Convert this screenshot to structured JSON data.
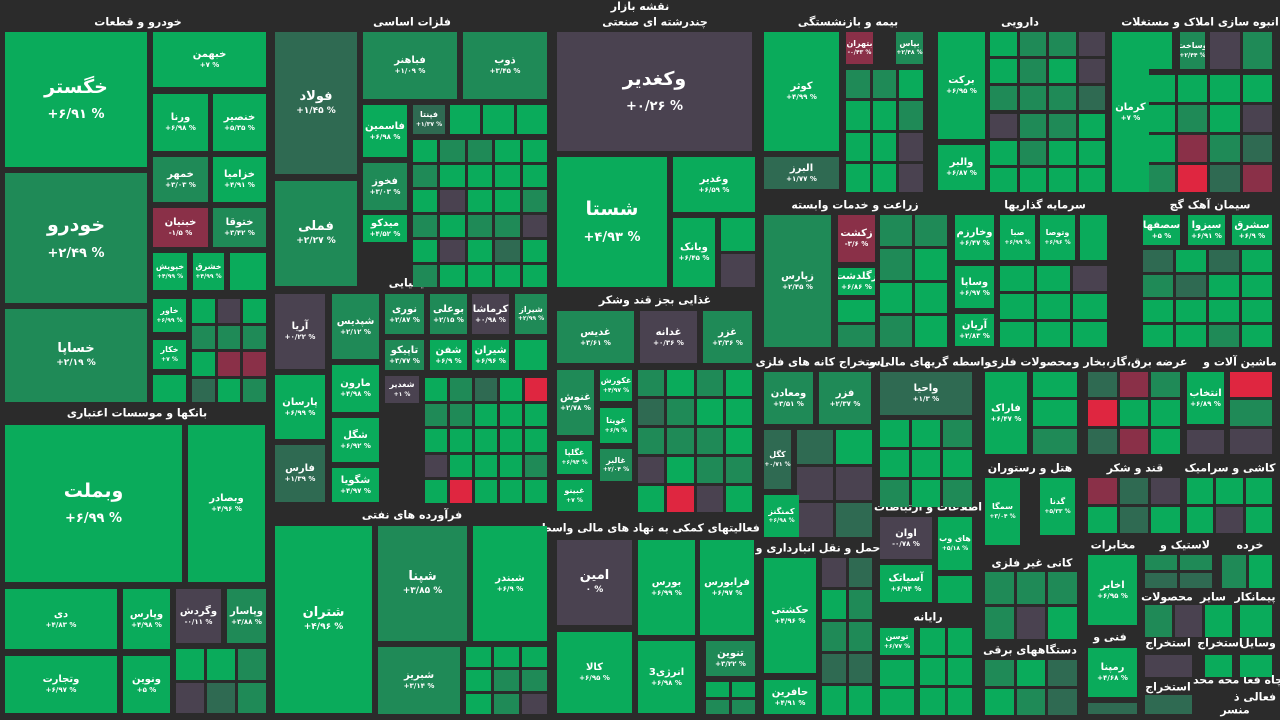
{
  "title": "نقشه بازار",
  "colors": {
    "strong_up": "#0aab5b",
    "up": "#1f8a57",
    "slight_up": "#2f6a52",
    "flat": "#4a4250",
    "down": "#8a3048",
    "strong_down": "#df2640"
  },
  "sectors": [
    "خودرو و قطعات",
    "فلزات اساسی",
    "چندرشته ای صنعتی",
    "بیمه و بازنشستگی",
    "دارویی",
    "انبوه سازی املاک و مستغلات",
    "شیمیایی",
    "بانکها و موسسات اعتباری",
    "فرآورده های نفتی",
    "غذایی بجز قند وشکر",
    "فعالیتهای کمکی به نهاد های مالی واسط",
    "زراعت و خدمات وابسته",
    "سرمایه گذاریها",
    "سیمان آهک گچ",
    "استخراج کانه های فلزی",
    "واسطه گریهای مالی و",
    "محصولات فلزی",
    "عرضه برق،گاز،بخار و",
    "ماشین آلات و",
    "هتل و رستوران",
    "قند و شکر",
    "کاشی و سرامیک",
    "اطلاعات و ارتباطات",
    "حمل و نقل انبارداری و",
    "مخابرات",
    "لاستیک و",
    "خرده",
    "کانی غیر فلزی",
    "محصولات",
    "سایر",
    "پیمانکار",
    "رایانه",
    "فنی و",
    "دستگاههای برقی",
    "استخراج",
    "استخراج",
    "وسایل",
    "استخراج",
    "چاه فعا محه محد",
    "فعالی ذ",
    "منسر"
  ],
  "tiles": [
    {
      "symbol": "خگستر",
      "change": "+۶/۹۱ %",
      "tone": "b"
    },
    {
      "symbol": "خودرو",
      "change": "+۲/۴۹ %",
      "tone": "m"
    },
    {
      "symbol": "خساپا",
      "change": "+۲/۱۹ %",
      "tone": "m"
    },
    {
      "symbol": "خبهمن",
      "change": "+۷ %",
      "tone": "b"
    },
    {
      "symbol": "ورنا",
      "change": "+۶/۹۸ %",
      "tone": "b"
    },
    {
      "symbol": "خنصیر",
      "change": "+۵/۳۵ %",
      "tone": "b"
    },
    {
      "symbol": "خمهر",
      "change": "+۳/۰۳ %",
      "tone": "m"
    },
    {
      "symbol": "خزامیا",
      "change": "+۴/۹۱ %",
      "tone": "b"
    },
    {
      "symbol": "خبنیان",
      "change": "-۱/۵ %",
      "tone": "r"
    },
    {
      "symbol": "ختوقا",
      "change": "+۳/۴۲ %",
      "tone": "m"
    },
    {
      "symbol": "خپویش",
      "change": "+۴/۹۹ %",
      "tone": "b"
    },
    {
      "symbol": "خشرق",
      "change": "+۴/۹۹ %",
      "tone": "b"
    },
    {
      "symbol": "خاور",
      "change": "+۶/۹۹ %",
      "tone": "b"
    },
    {
      "symbol": "خکار",
      "change": "+۷ %",
      "tone": "b"
    },
    {
      "symbol": "فولاد",
      "change": "+۱/۴۵ %",
      "tone": "d"
    },
    {
      "symbol": "فملی",
      "change": "+۲/۲۷ %",
      "tone": "m"
    },
    {
      "symbol": "فباهنر",
      "change": "+۱/۰۹ %",
      "tone": "m"
    },
    {
      "symbol": "ذوب",
      "change": "+۳/۴۵ %",
      "tone": "m"
    },
    {
      "symbol": "فاسمین",
      "change": "+۶/۹۸ %",
      "tone": "b"
    },
    {
      "symbol": "فپنتا",
      "change": "+۱/۳۷ %",
      "tone": "d"
    },
    {
      "symbol": "فخوز",
      "change": "+۳/۰۳ %",
      "tone": "m"
    },
    {
      "symbol": "میدکو",
      "change": "+۴/۵۲ %",
      "tone": "b"
    },
    {
      "symbol": "آریا",
      "change": "+۰/۲۲ %",
      "tone": "g"
    },
    {
      "symbol": "شپدیس",
      "change": "+۲/۱۲ %",
      "tone": "m"
    },
    {
      "symbol": "نوری",
      "change": "+۲/۸۷ %",
      "tone": "m"
    },
    {
      "symbol": "بوعلی",
      "change": "+۲/۱۵ %",
      "tone": "m"
    },
    {
      "symbol": "کرماشا",
      "change": "+۰/۹۸ %",
      "tone": "g"
    },
    {
      "symbol": "شیراز",
      "change": "+۲/۹۹ %",
      "tone": "m"
    },
    {
      "symbol": "تاپیکو",
      "change": "+۳/۷۷ %",
      "tone": "m"
    },
    {
      "symbol": "شفن",
      "change": "+۶/۹ %",
      "tone": "b"
    },
    {
      "symbol": "شیران",
      "change": "+۶/۹۶ %",
      "tone": "b"
    },
    {
      "symbol": "پارسان",
      "change": "+۶/۹۹ %",
      "tone": "b"
    },
    {
      "symbol": "مارون",
      "change": "+۴/۹۸ %",
      "tone": "b"
    },
    {
      "symbol": "شغدیر",
      "change": "+۱ %",
      "tone": "g"
    },
    {
      "symbol": "فارس",
      "change": "+۱/۳۹ %",
      "tone": "d"
    },
    {
      "symbol": "شگل",
      "change": "+۶/۹۲ %",
      "tone": "b"
    },
    {
      "symbol": "شگویا",
      "change": "+۴/۹۷ %",
      "tone": "b"
    },
    {
      "symbol": "شتران",
      "change": "+۴/۹۶ %",
      "tone": "b"
    },
    {
      "symbol": "شپنا",
      "change": "+۳/۸۵ %",
      "tone": "m"
    },
    {
      "symbol": "شبندر",
      "change": "+۶/۹ %",
      "tone": "b"
    },
    {
      "symbol": "شبریز",
      "change": "+۳/۱۴ %",
      "tone": "m"
    },
    {
      "symbol": "وبملت",
      "change": "+۶/۹۹ %",
      "tone": "b"
    },
    {
      "symbol": "وبصادر",
      "change": "+۴/۹۶ %",
      "tone": "b"
    },
    {
      "symbol": "دی",
      "change": "+۴/۸۳ %",
      "tone": "b"
    },
    {
      "symbol": "وپارس",
      "change": "+۴/۹۸ %",
      "tone": "b"
    },
    {
      "symbol": "وگردش",
      "change": "-۰/۱۱ %",
      "tone": "g"
    },
    {
      "symbol": "وپاسار",
      "change": "+۳/۸۸ %",
      "tone": "m"
    },
    {
      "symbol": "وتجارت",
      "change": "+۶/۹۷ %",
      "tone": "b"
    },
    {
      "symbol": "ونوین",
      "change": "+۵ %",
      "tone": "b"
    },
    {
      "symbol": "وکغدیر",
      "change": "+۰/۲۶ %",
      "tone": "g"
    },
    {
      "symbol": "شستا",
      "change": "+۴/۹۳ %",
      "tone": "b"
    },
    {
      "symbol": "وغدیر",
      "change": "+۶/۵۹ %",
      "tone": "b"
    },
    {
      "symbol": "وبانک",
      "change": "+۶/۴۵ %",
      "tone": "b"
    },
    {
      "symbol": "غدیس",
      "change": "+۳/۶۱ %",
      "tone": "m"
    },
    {
      "symbol": "غدانه",
      "change": "+۰/۳۶ %",
      "tone": "g"
    },
    {
      "symbol": "غزر",
      "change": "+۳/۳۶ %",
      "tone": "m"
    },
    {
      "symbol": "غنوش",
      "change": "+۲/۷۸ %",
      "tone": "m"
    },
    {
      "symbol": "غکورش",
      "change": "+۴/۹۷ %",
      "tone": "b"
    },
    {
      "symbol": "غویتا",
      "change": "+۶/۹ %",
      "tone": "b"
    },
    {
      "symbol": "غگلپا",
      "change": "+۶/۹۴ %",
      "tone": "b"
    },
    {
      "symbol": "غالبر",
      "change": "+۲/۰۴ %",
      "tone": "m"
    },
    {
      "symbol": "غبینو",
      "change": "+۷ %",
      "tone": "b"
    },
    {
      "symbol": "امین",
      "change": "۰ %",
      "tone": "g"
    },
    {
      "symbol": "بورس",
      "change": "+۶/۹۹ %",
      "tone": "b"
    },
    {
      "symbol": "فرابورس",
      "change": "+۶/۹۷ %",
      "tone": "b"
    },
    {
      "symbol": "کالا",
      "change": "+۶/۹۵ %",
      "tone": "b"
    },
    {
      "symbol": "انرژی3",
      "change": "+۶/۹۸ %",
      "tone": "b"
    },
    {
      "symbol": "تنوین",
      "change": "+۳/۲۲ %",
      "tone": "m"
    },
    {
      "symbol": "کوثر",
      "change": "+۴/۹۹ %",
      "tone": "b"
    },
    {
      "symbol": "البرز",
      "change": "+۱/۷۷ %",
      "tone": "d"
    },
    {
      "symbol": "بتهران",
      "change": "-۰/۴۳ %",
      "tone": "r"
    },
    {
      "symbol": "بپاس",
      "change": "+۲/۴۸ %",
      "tone": "m"
    },
    {
      "symbol": "برکت",
      "change": "+۶/۹۵ %",
      "tone": "b"
    },
    {
      "symbol": "والبر",
      "change": "+۶/۸۷ %",
      "tone": "b"
    },
    {
      "symbol": "کرمان",
      "change": "+۷ %",
      "tone": "b"
    },
    {
      "symbol": "وساخت",
      "change": "+۲/۴۴ %",
      "tone": "m"
    },
    {
      "symbol": "زپارس",
      "change": "+۲/۴۵ %",
      "tone": "m"
    },
    {
      "symbol": "زکشت",
      "change": "-۳/۶ %",
      "tone": "r"
    },
    {
      "symbol": "زگلدشت",
      "change": "+۶/۸۶ %",
      "tone": "b"
    },
    {
      "symbol": "وخارزم",
      "change": "+۶/۴۷ %",
      "tone": "b"
    },
    {
      "symbol": "صبا",
      "change": "+۶/۹۹ %",
      "tone": "b"
    },
    {
      "symbol": "وتوصا",
      "change": "+۶/۹۶ %",
      "tone": "b"
    },
    {
      "symbol": "وساپا",
      "change": "+۶/۹۷ %",
      "tone": "b"
    },
    {
      "symbol": "آریان",
      "change": "+۲/۸۳ %",
      "tone": "b"
    },
    {
      "symbol": "سصفها",
      "change": "+۵ %",
      "tone": "b"
    },
    {
      "symbol": "سیزوا",
      "change": "+۶/۹۱ %",
      "tone": "b"
    },
    {
      "symbol": "سشرق",
      "change": "+۶/۹ %",
      "tone": "b"
    },
    {
      "symbol": "ومعادن",
      "change": "+۳/۵۱ %",
      "tone": "m"
    },
    {
      "symbol": "فزر",
      "change": "+۲/۳۷ %",
      "tone": "m"
    },
    {
      "symbol": "کگل",
      "change": "+۰/۷۱ %",
      "tone": "d"
    },
    {
      "symbol": "کمنگنز",
      "change": "+۶/۹۸ %",
      "tone": "b"
    },
    {
      "symbol": "واحیا",
      "change": "+۱/۳ %",
      "tone": "d"
    },
    {
      "symbol": "فاراک",
      "change": "+۶/۴۷ %",
      "tone": "b"
    },
    {
      "symbol": "انتخاب",
      "change": "+۶/۸۹ %",
      "tone": "b"
    },
    {
      "symbol": "سمگا",
      "change": "+۳/۰۴ %",
      "tone": "b"
    },
    {
      "symbol": "گدنا",
      "change": "+۵/۳۳ %",
      "tone": "b"
    },
    {
      "symbol": "اوان",
      "change": "-۰/۷۸ %",
      "tone": "g"
    },
    {
      "symbol": "های وب",
      "change": "+۵/۱۸ %",
      "tone": "b"
    },
    {
      "symbol": "آسیاتک",
      "change": "+۶/۹۴ %",
      "tone": "b"
    },
    {
      "symbol": "حکشتی",
      "change": "+۴/۹۶ %",
      "tone": "b"
    },
    {
      "symbol": "حافرین",
      "change": "+۴/۹۱ %",
      "tone": "b"
    },
    {
      "symbol": "اخابر",
      "change": "+۶/۹۵ %",
      "tone": "b"
    },
    {
      "symbol": "توسن",
      "change": "+۶/۷۷ %",
      "tone": "b"
    },
    {
      "symbol": "رمپنا",
      "change": "+۴/۶۸ %",
      "tone": "b"
    }
  ]
}
